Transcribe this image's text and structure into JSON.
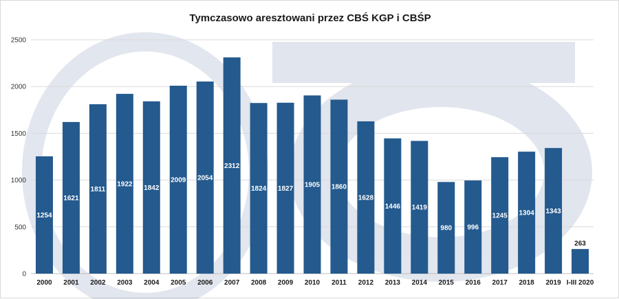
{
  "chart_data": {
    "type": "bar",
    "title": "Tymczasowo aresztowani przez CBŚ KGP i CBŚP",
    "categories": [
      "2000",
      "2001",
      "2002",
      "2003",
      "2004",
      "2005",
      "2006",
      "2007",
      "2008",
      "2009",
      "2010",
      "2011",
      "2012",
      "2013",
      "2014",
      "2015",
      "2016",
      "2017",
      "2018",
      "2019",
      "I-III 2020"
    ],
    "values": [
      1254,
      1621,
      1811,
      1922,
      1842,
      2009,
      2054,
      2312,
      1824,
      1827,
      1905,
      1860,
      1628,
      1446,
      1419,
      980,
      996,
      1245,
      1304,
      1343,
      263
    ],
    "ylim": [
      0,
      2500
    ],
    "yticks": [
      0,
      500,
      1000,
      1500,
      2000,
      2500
    ],
    "grid": true,
    "legend": "none",
    "colors": {
      "bar": "#245a8e",
      "grid": "#d9d9d9",
      "axis": "#bfbfbf"
    }
  }
}
